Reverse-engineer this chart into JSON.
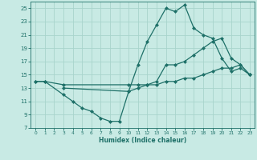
{
  "xlabel": "Humidex (Indice chaleur)",
  "bg_color": "#c8eae4",
  "grid_color": "#a8d4cc",
  "line_color": "#1e7068",
  "xlim": [
    -0.5,
    23.5
  ],
  "ylim": [
    7,
    26
  ],
  "xticks": [
    0,
    1,
    2,
    3,
    4,
    5,
    6,
    7,
    8,
    9,
    10,
    11,
    12,
    13,
    14,
    15,
    16,
    17,
    18,
    19,
    20,
    21,
    22,
    23
  ],
  "yticks": [
    7,
    9,
    11,
    13,
    15,
    17,
    19,
    21,
    23,
    25
  ],
  "series1_x": [
    0,
    1,
    3,
    4,
    5,
    6,
    7,
    8,
    9,
    10,
    11,
    12,
    13,
    14,
    15,
    16,
    17,
    18,
    19,
    20,
    21,
    22,
    23
  ],
  "series1_y": [
    14,
    14,
    12,
    11,
    10,
    9.5,
    8.5,
    8,
    8,
    12.5,
    16.5,
    20,
    22.5,
    25,
    24.5,
    25.5,
    22,
    21,
    20.5,
    17.5,
    15.5,
    16,
    15
  ],
  "series2_x": [
    0,
    1,
    3,
    10,
    11,
    12,
    13,
    14,
    15,
    16,
    17,
    18,
    19,
    20,
    21,
    22,
    23
  ],
  "series2_y": [
    14,
    14,
    13.5,
    13.5,
    13.5,
    13.5,
    13.5,
    14,
    14,
    14.5,
    14.5,
    15,
    15.5,
    16,
    16,
    16.5,
    15
  ],
  "series3_x": [
    3,
    10,
    11,
    12,
    13,
    14,
    15,
    16,
    17,
    18,
    19,
    20,
    21,
    22,
    23
  ],
  "series3_y": [
    13,
    12.5,
    13,
    13.5,
    14,
    16.5,
    16.5,
    17,
    18,
    19,
    20,
    20.5,
    17.5,
    16.5,
    15
  ]
}
